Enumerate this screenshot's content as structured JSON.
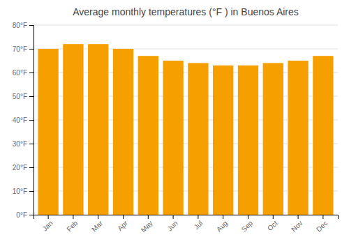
{
  "chart_data": {
    "type": "bar",
    "title": "Average monthly temperatures (°F ) in Buenos Aires",
    "categories": [
      "Jan",
      "Feb",
      "Mar",
      "Apr",
      "May",
      "Jun",
      "Jul",
      "Aug",
      "Sep",
      "Oct",
      "Nov",
      "Dec"
    ],
    "values": [
      70,
      72,
      72,
      70,
      67,
      65,
      64,
      63,
      63,
      64,
      65,
      67
    ],
    "color": "#F5A000",
    "ylim": [
      0,
      80
    ],
    "yticks": [
      {
        "value": 0,
        "label": "0°F"
      },
      {
        "value": 10,
        "label": "10°F"
      },
      {
        "value": 20,
        "label": "20°F"
      },
      {
        "value": 30,
        "label": "30°F"
      },
      {
        "value": 40,
        "label": "40°F"
      },
      {
        "value": 50,
        "label": "50°F"
      },
      {
        "value": 60,
        "label": "60°F"
      },
      {
        "value": 70,
        "label": "70°F"
      },
      {
        "value": 80,
        "label": "80°F"
      }
    ],
    "grid": true
  }
}
